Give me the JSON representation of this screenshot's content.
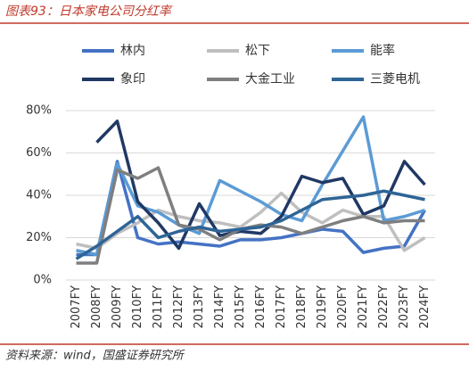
{
  "chart_data": {
    "type": "line",
    "title": "图表93：日本家电公司分红率",
    "source": "资料来源：wind，国盛证券研究所",
    "categories": [
      "2007FY",
      "2008FY",
      "2009FY",
      "2010FY",
      "2011FY",
      "2012FY",
      "2013FY",
      "2014FY",
      "2015FY",
      "2016FY",
      "2017FY",
      "2018FY",
      "2019FY",
      "2020FY",
      "2021FY",
      "2022FY",
      "2023FY",
      "2024FY"
    ],
    "series": [
      {
        "name": "林内",
        "color": "#4472c4",
        "values": [
          12,
          12,
          56,
          20,
          17,
          18,
          17,
          16,
          19,
          19,
          20,
          22,
          24,
          23,
          13,
          15,
          16,
          33
        ]
      },
      {
        "name": "松下",
        "color": "#bfbfbf",
        "values": [
          17,
          15,
          22,
          27,
          33,
          30,
          28,
          27,
          25,
          32,
          41,
          32,
          27,
          33,
          30,
          30,
          14,
          20
        ]
      },
      {
        "name": "能率",
        "color": "#5b9bd5",
        "values": [
          14,
          12,
          55,
          35,
          32,
          26,
          22,
          47,
          42,
          37,
          31,
          28,
          45,
          61,
          77,
          28,
          30,
          33
        ]
      },
      {
        "name": "象印",
        "color": "#203864",
        "values": [
          null,
          65,
          75,
          37,
          27,
          15,
          36,
          21,
          23,
          22,
          30,
          49,
          46,
          48,
          31,
          35,
          56,
          45
        ]
      },
      {
        "name": "大金工业",
        "color": "#7f7f7f",
        "values": [
          8,
          8,
          52,
          48,
          53,
          26,
          24,
          19,
          24,
          26,
          25,
          22,
          25,
          28,
          30,
          27,
          28,
          28
        ]
      },
      {
        "name": "三菱电机",
        "color": "#2e6496",
        "values": [
          10,
          16,
          23,
          30,
          20,
          23,
          25,
          23,
          24,
          25,
          28,
          33,
          38,
          39,
          40,
          42,
          40,
          38
        ]
      }
    ],
    "ylim": [
      0,
      80
    ],
    "yticks": [
      {
        "value": 0,
        "label": "0%"
      },
      {
        "value": 20,
        "label": "20%"
      },
      {
        "value": 40,
        "label": "40%"
      },
      {
        "value": 60,
        "label": "60%"
      },
      {
        "value": 80,
        "label": "80%"
      }
    ],
    "grid": true
  }
}
